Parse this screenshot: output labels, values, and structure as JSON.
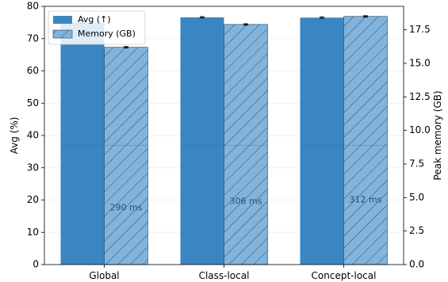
{
  "chart_data": {
    "type": "bar",
    "categories": [
      "Global",
      "Class-local",
      "Concept-local"
    ],
    "series": [
      {
        "name": "Avg (↑)",
        "axis": "left",
        "color": "#3a86c2",
        "hatch": false,
        "values": [
          75.0,
          76.6,
          76.5
        ],
        "errors": [
          0.3,
          0.2,
          0.2
        ]
      },
      {
        "name": "Memory (GB)",
        "axis": "right",
        "color": "#82b4db",
        "hatch": true,
        "values": [
          16.2,
          17.9,
          18.5
        ],
        "errors": [
          0.05,
          0.05,
          0.05
        ]
      }
    ],
    "annotations": [
      "290 ms",
      "306 ms",
      "312 ms"
    ],
    "annotation_levels": [
      17.5,
      19.5,
      20.0
    ],
    "ylabel_left": "Avg (%)",
    "ylabel_right": "Peak memory (GB)",
    "ylim_left": [
      0,
      80
    ],
    "ylim_right": [
      0,
      19.25
    ],
    "yticks_left": [
      "0",
      "10",
      "20",
      "30",
      "40",
      "50",
      "60",
      "70",
      "80"
    ],
    "yticks_right": [
      "0.0",
      "2.5",
      "5.0",
      "7.5",
      "10.0",
      "12.5",
      "15.0",
      "17.5"
    ],
    "grid": "horizontal",
    "legend_position": "upper-left"
  }
}
